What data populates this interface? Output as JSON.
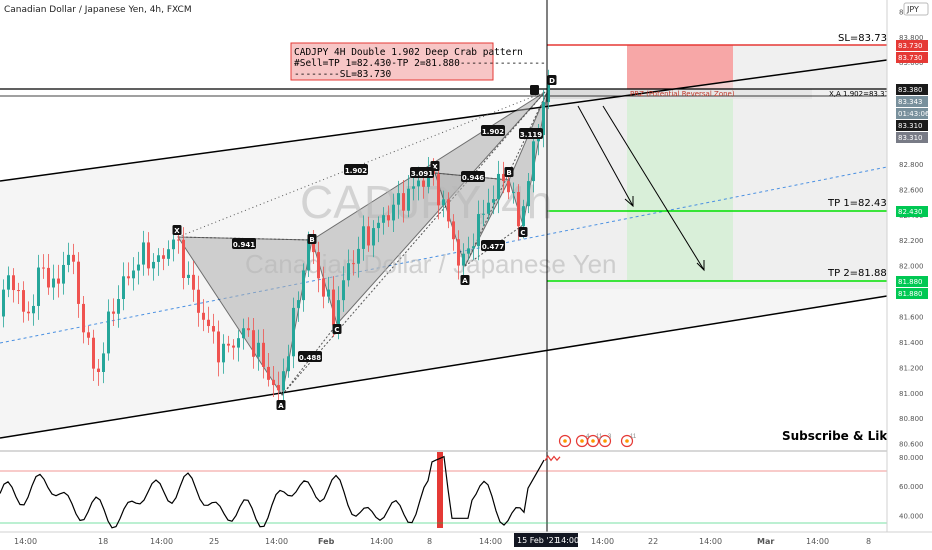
{
  "header": {
    "symbol_title": "Canadian Dollar / Japanese Yen, 4h, FXCM",
    "currency_badge": "JPY"
  },
  "watermark": {
    "main": "CADJPY, 4h",
    "sub": "Canadian Dollar / Japanese Yen"
  },
  "annotations": {
    "trade_note_lines": [
      "CADJPY 4H Double 1.902 Deep Crab pattern",
      "#Sell=TP 1=82.430-TP 2=81.880---------------",
      "--------SL=83.730"
    ],
    "prz_label": "PRZ (Potential Reversal Zone)",
    "xa_label": "X,A 1.902=83.310",
    "sl_label": "SL=83.730",
    "tp1_label": "TP 1=82.430",
    "tp2_label": "TP 2=81.880",
    "subscribe": "Subscribe & Like!!!",
    "event_counts": [
      "4",
      "11",
      "3",
      "11"
    ]
  },
  "price_axis": {
    "ticks": [
      "84.000",
      "83.800",
      "83.600",
      "83.400",
      "83.200",
      "83.000",
      "82.800",
      "82.600",
      "82.400",
      "82.200",
      "82.000",
      "81.800",
      "81.600",
      "81.400",
      "81.200",
      "81.000",
      "80.800",
      "80.600"
    ],
    "tags": [
      {
        "text": "83.730",
        "color": "#e53935"
      },
      {
        "text": "83.730",
        "color": "#e53935"
      },
      {
        "text": "83.380",
        "color": "#1a1a1a"
      },
      {
        "text": "83.343",
        "color": "#78909c"
      },
      {
        "text": "01:43:06",
        "color": "#78909c"
      },
      {
        "text": "83.310",
        "color": "#1a1a1a"
      },
      {
        "text": "83.310",
        "color": "#787b86"
      },
      {
        "text": "82.430",
        "color": "#00c853"
      },
      {
        "text": "81.880",
        "color": "#00c853"
      },
      {
        "text": "81.880",
        "color": "#00c853"
      }
    ]
  },
  "osc_axis": {
    "ticks": [
      "80.000",
      "60.000",
      "40.000"
    ]
  },
  "time_axis": {
    "labels": [
      "14:00",
      "18",
      "14:00",
      "25",
      "14:00",
      "Feb",
      "14:00",
      "8",
      "14:00",
      "14:00",
      "22",
      "14:00",
      "Mar",
      "14:00",
      "8"
    ],
    "current_date": "15 Feb '21",
    "current_time": "14:00"
  },
  "colors": {
    "bull": "#26a69a",
    "bear": "#ef5350",
    "stop_zone": "#f7a7a7",
    "target_zone": "#b9f0b9",
    "accent_green": "#00e000",
    "accent_red": "#e53935"
  },
  "chart_data": [
    {
      "type": "candlestick",
      "title": "Canadian Dollar / Japanese Yen, 4h, FXCM",
      "ylim": [
        80.55,
        84.05
      ],
      "pattern_points": [
        {
          "label": "X",
          "price": 82.22
        },
        {
          "label": "A",
          "price": 80.98
        },
        {
          "label": "B",
          "price": 82.2
        },
        {
          "label": "C",
          "price": 81.6
        },
        {
          "label": "X",
          "price": 82.72
        },
        {
          "label": "A",
          "price": 81.98
        },
        {
          "label": "B",
          "price": 82.72
        },
        {
          "label": "C",
          "price": 82.3
        },
        {
          "label": "D",
          "price": 83.36
        }
      ],
      "ratios": [
        "0.941",
        "0.488",
        "1.902",
        "3.091",
        "0.946",
        "0.477",
        "1.902",
        "3.119"
      ],
      "levels": {
        "stop_loss": 83.73,
        "take_profit_1": 82.43,
        "take_profit_2": 81.88,
        "prz": 83.31
      }
    },
    {
      "type": "line",
      "ylim": [
        30,
        82
      ],
      "y_ticks": [
        80,
        60,
        40
      ],
      "reference_lines": [
        70,
        30
      ]
    }
  ]
}
